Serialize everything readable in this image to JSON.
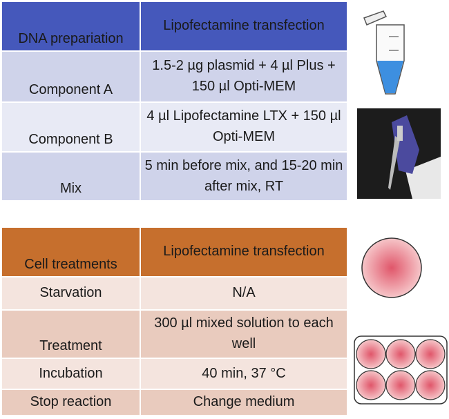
{
  "table1": {
    "header": [
      "DNA prepariation",
      "Lipofectamine transfection"
    ],
    "rows": [
      [
        "Component A",
        "1.5-2 µg plasmid + 4 µl Plus + 150 µl Opti-MEM"
      ],
      [
        "Component B",
        "4 µl Lipofectamine LTX + 150 µl Opti-MEM"
      ],
      [
        "Mix",
        "5 min before mix, and 15-20 min after mix, RT"
      ]
    ]
  },
  "table2": {
    "header": [
      "Cell treatments",
      "Lipofectamine transfection"
    ],
    "rows": [
      [
        "Starvation",
        "N/A"
      ],
      [
        "Treatment",
        "300 µl mixed solution to each well"
      ],
      [
        "Incubation",
        "40 min, 37 °C"
      ],
      [
        "Stop reaction",
        "Change medium"
      ]
    ]
  }
}
